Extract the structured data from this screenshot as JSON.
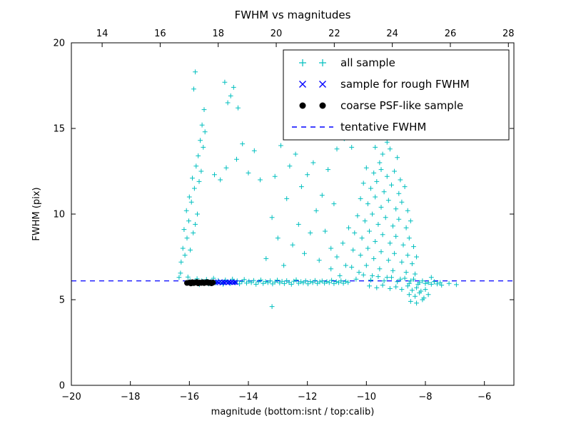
{
  "chart_data": {
    "type": "scatter",
    "title": "FWHM vs magnitudes",
    "xlabel": "magnitude (bottom:isnt / top:calib)",
    "ylabel": "FWHM (pix)",
    "xlim": [
      -20,
      -5
    ],
    "ylim": [
      0,
      20
    ],
    "grid": false,
    "legend_position": "upper right",
    "x_ticks_bottom": {
      "values": [
        -20,
        -18,
        -16,
        -14,
        -12,
        -10,
        -8,
        -6
      ],
      "labels": [
        "−20",
        "−18",
        "−16",
        "−14",
        "−12",
        "−10",
        "−8",
        "−6"
      ]
    },
    "x_ticks_top": {
      "lim": [
        12.94,
        28.19
      ],
      "values": [
        14,
        16,
        18,
        20,
        22,
        24,
        26,
        28
      ],
      "labels": [
        "14",
        "16",
        "18",
        "20",
        "22",
        "24",
        "26",
        "28"
      ]
    },
    "y_ticks": {
      "values": [
        0,
        5,
        10,
        15,
        20
      ],
      "labels": [
        "0",
        "5",
        "10",
        "15",
        "20"
      ]
    },
    "tentative_fwhm": 6.1,
    "colors": {
      "all_sample": "#00bfbf",
      "rough_sample": "#0000ff",
      "psf_sample": "#000000",
      "tentative_line": "#0000ff",
      "axes": "#000000"
    },
    "series": [
      {
        "name": "all sample",
        "marker": "plus",
        "color": "#00bfbf",
        "points": [
          [
            -16.35,
            6.3
          ],
          [
            -16.05,
            6.32
          ],
          [
            -15.98,
            6.12
          ],
          [
            -15.9,
            5.95
          ],
          [
            -15.82,
            6.05
          ],
          [
            -15.74,
            6.22
          ],
          [
            -15.66,
            5.88
          ],
          [
            -15.58,
            6.1
          ],
          [
            -15.5,
            6.0
          ],
          [
            -15.42,
            6.18
          ],
          [
            -15.34,
            5.92
          ],
          [
            -15.26,
            6.08
          ],
          [
            -15.18,
            6.25
          ],
          [
            -15.1,
            5.98
          ],
          [
            -15.02,
            6.12
          ],
          [
            -14.94,
            6.02
          ],
          [
            -14.86,
            5.9
          ],
          [
            -14.78,
            6.15
          ],
          [
            -14.7,
            6.05
          ],
          [
            -14.62,
            5.95
          ],
          [
            -14.54,
            6.2
          ],
          [
            -14.46,
            6.0
          ],
          [
            -14.38,
            6.1
          ],
          [
            -14.3,
            5.93
          ],
          [
            -14.22,
            6.05
          ],
          [
            -14.14,
            6.18
          ],
          [
            -14.06,
            5.97
          ],
          [
            -13.98,
            6.08
          ],
          [
            -13.9,
            6.0
          ],
          [
            -13.82,
            6.12
          ],
          [
            -13.74,
            5.9
          ],
          [
            -13.66,
            6.04
          ],
          [
            -13.58,
            6.15
          ],
          [
            -13.5,
            5.95
          ],
          [
            -13.42,
            6.06
          ],
          [
            -13.34,
            6.0
          ],
          [
            -13.26,
            6.1
          ],
          [
            -13.18,
            5.92
          ],
          [
            -13.1,
            6.03
          ],
          [
            -13.02,
            6.14
          ],
          [
            -12.94,
            5.98
          ],
          [
            -12.86,
            6.07
          ],
          [
            -12.78,
            5.94
          ],
          [
            -12.7,
            6.11
          ],
          [
            -12.62,
            6.01
          ],
          [
            -12.54,
            5.9
          ],
          [
            -12.46,
            6.08
          ],
          [
            -12.38,
            6.16
          ],
          [
            -12.3,
            5.96
          ],
          [
            -12.22,
            6.05
          ],
          [
            -12.14,
            5.99
          ],
          [
            -12.06,
            6.1
          ],
          [
            -11.98,
            5.93
          ],
          [
            -11.9,
            6.06
          ],
          [
            -11.82,
            6.0
          ],
          [
            -11.74,
            6.12
          ],
          [
            -11.66,
            5.95
          ],
          [
            -11.58,
            6.04
          ],
          [
            -11.5,
            6.09
          ],
          [
            -11.42,
            5.97
          ],
          [
            -11.34,
            6.06
          ],
          [
            -11.26,
            6.0
          ],
          [
            -11.18,
            6.13
          ],
          [
            -11.1,
            5.94
          ],
          [
            -11.02,
            6.05
          ],
          [
            -10.94,
            6.0
          ],
          [
            -10.86,
            6.1
          ],
          [
            -10.78,
            5.96
          ],
          [
            -10.7,
            6.07
          ],
          [
            -10.62,
            6.01
          ],
          [
            -16.3,
            6.55
          ],
          [
            -16.28,
            7.2
          ],
          [
            -16.22,
            8.0
          ],
          [
            -16.18,
            9.1
          ],
          [
            -16.15,
            7.6
          ],
          [
            -16.1,
            10.2
          ],
          [
            -16.08,
            8.6
          ],
          [
            -16.02,
            9.6
          ],
          [
            -16.0,
            11.0
          ],
          [
            -15.97,
            7.9
          ],
          [
            -15.93,
            10.7
          ],
          [
            -15.9,
            12.1
          ],
          [
            -15.87,
            8.9
          ],
          [
            -15.83,
            11.5
          ],
          [
            -15.8,
            18.3
          ],
          [
            -15.85,
            17.3
          ],
          [
            -15.8,
            9.4
          ],
          [
            -15.77,
            12.8
          ],
          [
            -15.73,
            10.0
          ],
          [
            -15.7,
            13.4
          ],
          [
            -15.67,
            11.9
          ],
          [
            -15.63,
            14.3
          ],
          [
            -15.6,
            12.5
          ],
          [
            -15.57,
            15.2
          ],
          [
            -15.53,
            13.9
          ],
          [
            -15.5,
            16.1
          ],
          [
            -15.47,
            14.8
          ],
          [
            -15.15,
            12.3
          ],
          [
            -14.95,
            12.0
          ],
          [
            -14.75,
            12.7
          ],
          [
            -14.8,
            17.7
          ],
          [
            -14.7,
            16.5
          ],
          [
            -14.6,
            16.9
          ],
          [
            -14.5,
            17.4
          ],
          [
            -14.35,
            16.2
          ],
          [
            -14.4,
            13.2
          ],
          [
            -14.2,
            14.1
          ],
          [
            -14.0,
            12.4
          ],
          [
            -13.8,
            13.7
          ],
          [
            -13.6,
            12.0
          ],
          [
            -13.4,
            7.4
          ],
          [
            -13.2,
            9.8
          ],
          [
            -13.1,
            12.2
          ],
          [
            -13.0,
            8.6
          ],
          [
            -12.9,
            14.0
          ],
          [
            -12.8,
            7.0
          ],
          [
            -12.7,
            10.9
          ],
          [
            -12.6,
            12.8
          ],
          [
            -12.5,
            8.2
          ],
          [
            -12.4,
            13.5
          ],
          [
            -12.3,
            9.4
          ],
          [
            -12.2,
            11.6
          ],
          [
            -12.1,
            7.7
          ],
          [
            -12.0,
            12.3
          ],
          [
            -11.9,
            8.9
          ],
          [
            -11.8,
            13.0
          ],
          [
            -11.7,
            10.2
          ],
          [
            -11.6,
            7.3
          ],
          [
            -11.5,
            11.1
          ],
          [
            -11.4,
            9.0
          ],
          [
            -11.3,
            12.6
          ],
          [
            -11.2,
            8.0
          ],
          [
            -11.1,
            10.6
          ],
          [
            -11.0,
            13.8
          ],
          [
            -13.2,
            4.6
          ],
          [
            -10.9,
            14.8
          ],
          [
            -10.75,
            14.4
          ],
          [
            -10.5,
            13.9
          ],
          [
            -11.2,
            6.8
          ],
          [
            -11.0,
            7.5
          ],
          [
            -10.8,
            8.3
          ],
          [
            -10.7,
            7.0
          ],
          [
            -10.6,
            9.2
          ],
          [
            -10.9,
            6.4
          ],
          [
            -9.8,
            15.2
          ],
          [
            -9.6,
            14.7
          ],
          [
            -9.4,
            15.0
          ],
          [
            -9.3,
            14.2
          ],
          [
            -9.1,
            14.5
          ],
          [
            -9.7,
            13.9
          ],
          [
            -9.45,
            13.5
          ],
          [
            -9.2,
            13.8
          ],
          [
            -8.95,
            13.3
          ],
          [
            -9.55,
            13.0
          ],
          [
            -10.0,
            12.7
          ],
          [
            -9.75,
            12.4
          ],
          [
            -9.5,
            12.6
          ],
          [
            -9.3,
            12.2
          ],
          [
            -9.05,
            12.5
          ],
          [
            -8.85,
            12.0
          ],
          [
            -10.1,
            11.8
          ],
          [
            -9.85,
            11.5
          ],
          [
            -9.65,
            11.9
          ],
          [
            -9.4,
            11.3
          ],
          [
            -9.15,
            11.7
          ],
          [
            -8.9,
            11.2
          ],
          [
            -8.7,
            11.6
          ],
          [
            -10.2,
            10.9
          ],
          [
            -9.95,
            10.6
          ],
          [
            -9.7,
            11.0
          ],
          [
            -9.5,
            10.4
          ],
          [
            -9.25,
            10.8
          ],
          [
            -9.0,
            10.3
          ],
          [
            -8.8,
            10.7
          ],
          [
            -8.6,
            10.2
          ],
          [
            -10.3,
            9.9
          ],
          [
            -10.05,
            9.6
          ],
          [
            -9.8,
            10.0
          ],
          [
            -9.6,
            9.4
          ],
          [
            -9.35,
            9.8
          ],
          [
            -9.1,
            9.3
          ],
          [
            -8.9,
            9.7
          ],
          [
            -8.65,
            9.2
          ],
          [
            -8.5,
            9.6
          ],
          [
            -10.4,
            8.9
          ],
          [
            -10.15,
            8.6
          ],
          [
            -9.9,
            9.0
          ],
          [
            -9.7,
            8.4
          ],
          [
            -9.45,
            8.8
          ],
          [
            -9.2,
            8.3
          ],
          [
            -9.0,
            8.7
          ],
          [
            -8.75,
            8.2
          ],
          [
            -8.55,
            8.6
          ],
          [
            -8.4,
            8.1
          ],
          [
            -10.45,
            7.9
          ],
          [
            -10.2,
            7.6
          ],
          [
            -9.95,
            8.0
          ],
          [
            -9.75,
            7.4
          ],
          [
            -9.5,
            7.8
          ],
          [
            -9.25,
            7.3
          ],
          [
            -9.05,
            7.7
          ],
          [
            -8.8,
            7.2
          ],
          [
            -8.6,
            7.6
          ],
          [
            -8.45,
            7.1
          ],
          [
            -8.3,
            7.5
          ],
          [
            -10.5,
            6.9
          ],
          [
            -10.25,
            6.6
          ],
          [
            -10.0,
            7.0
          ],
          [
            -9.8,
            6.4
          ],
          [
            -9.55,
            6.8
          ],
          [
            -9.3,
            6.3
          ],
          [
            -9.1,
            6.7
          ],
          [
            -8.85,
            6.2
          ],
          [
            -8.65,
            6.6
          ],
          [
            -8.5,
            6.1
          ],
          [
            -8.35,
            6.5
          ],
          [
            -8.2,
            6.0
          ],
          [
            -10.35,
            6.2
          ],
          [
            -10.1,
            6.45
          ],
          [
            -9.85,
            6.15
          ],
          [
            -9.6,
            6.35
          ],
          [
            -9.4,
            6.1
          ],
          [
            -9.15,
            6.3
          ],
          [
            -8.95,
            6.05
          ],
          [
            -8.7,
            6.25
          ],
          [
            -8.55,
            5.95
          ],
          [
            -8.4,
            6.2
          ],
          [
            -8.25,
            5.9
          ],
          [
            -8.1,
            6.1
          ],
          [
            -9.9,
            5.8
          ],
          [
            -9.65,
            5.7
          ],
          [
            -9.45,
            5.85
          ],
          [
            -9.2,
            5.65
          ],
          [
            -9.0,
            5.75
          ],
          [
            -8.8,
            5.6
          ],
          [
            -8.6,
            5.8
          ],
          [
            -8.45,
            5.55
          ],
          [
            -8.3,
            5.7
          ],
          [
            -8.15,
            5.5
          ],
          [
            -8.0,
            5.6
          ],
          [
            -8.55,
            5.3
          ],
          [
            -8.35,
            5.2
          ],
          [
            -8.2,
            5.4
          ],
          [
            -8.05,
            5.1
          ],
          [
            -7.9,
            5.3
          ],
          [
            -8.5,
            4.9
          ],
          [
            -8.3,
            4.8
          ],
          [
            -8.1,
            5.0
          ],
          [
            -9.9,
            14.9
          ],
          [
            -9.0,
            15.1
          ],
          [
            -8.0,
            5.95
          ],
          [
            -7.9,
            6.0
          ],
          [
            -7.8,
            5.9
          ],
          [
            -7.7,
            6.05
          ],
          [
            -7.6,
            5.92
          ],
          [
            -7.5,
            6.0
          ],
          [
            -7.45,
            5.85
          ],
          [
            -7.2,
            5.95
          ],
          [
            -6.95,
            5.88
          ],
          [
            -7.8,
            6.3
          ],
          [
            -7.05,
            15.9
          ]
        ]
      },
      {
        "name": "sample for rough FWHM",
        "marker": "x",
        "color": "#0000ff",
        "points": [
          [
            -15.28,
            6.02
          ],
          [
            -15.22,
            6.0
          ],
          [
            -15.16,
            6.05
          ],
          [
            -15.1,
            5.98
          ],
          [
            -15.05,
            6.03
          ],
          [
            -15.0,
            6.0
          ],
          [
            -14.95,
            6.06
          ],
          [
            -14.9,
            5.97
          ],
          [
            -14.85,
            6.02
          ],
          [
            -14.8,
            6.0
          ],
          [
            -14.75,
            6.04
          ],
          [
            -14.7,
            5.98
          ],
          [
            -14.65,
            6.03
          ],
          [
            -14.6,
            6.0
          ],
          [
            -14.55,
            6.05
          ],
          [
            -14.5,
            5.99
          ],
          [
            -14.46,
            6.02
          ],
          [
            -14.42,
            6.0
          ]
        ]
      },
      {
        "name": "coarse PSF-like sample",
        "marker": "dot",
        "color": "#000000",
        "points": [
          [
            -16.08,
            5.98
          ],
          [
            -16.0,
            6.0
          ],
          [
            -15.95,
            5.95
          ],
          [
            -15.9,
            6.02
          ],
          [
            -15.85,
            5.97
          ],
          [
            -15.8,
            6.0
          ],
          [
            -15.75,
            6.03
          ],
          [
            -15.7,
            5.96
          ],
          [
            -15.65,
            6.0
          ],
          [
            -15.6,
            5.98
          ],
          [
            -15.55,
            6.02
          ],
          [
            -15.5,
            5.97
          ],
          [
            -15.45,
            6.0
          ],
          [
            -15.4,
            6.03
          ],
          [
            -15.35,
            5.98
          ],
          [
            -15.3,
            6.0
          ],
          [
            -15.25,
            5.96
          ],
          [
            -15.2,
            6.0
          ]
        ]
      },
      {
        "name": "tentative FWHM",
        "marker": "dash",
        "color": "#0000ff",
        "y": 6.1
      }
    ]
  }
}
